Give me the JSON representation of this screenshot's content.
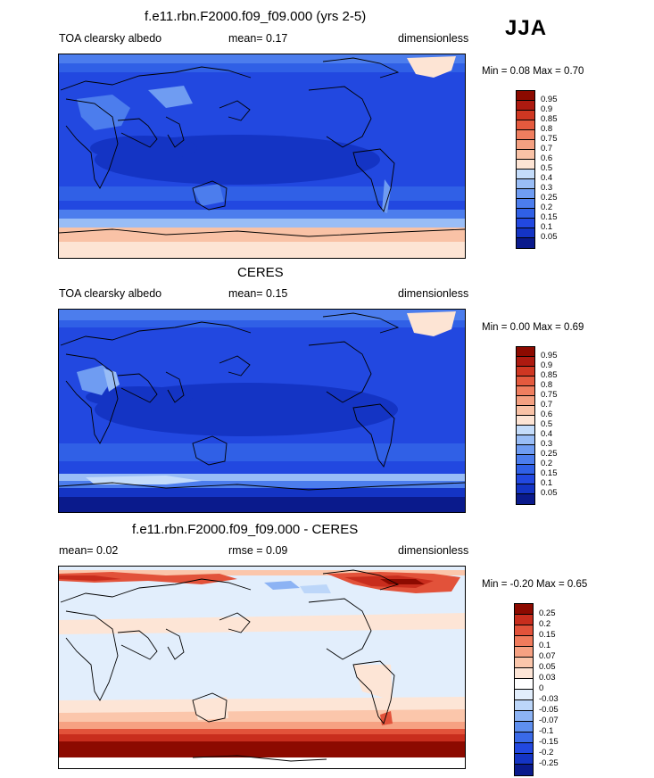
{
  "season": "JJA",
  "colors": {
    "abs_scale": [
      "#0a1a8c",
      "#1434c4",
      "#2248e0",
      "#3060e6",
      "#4c7ded",
      "#6f9cf2",
      "#99bdf6",
      "#c4dcfa",
      "#fde4d4",
      "#f9c2a6",
      "#f4a081",
      "#ef7e5f",
      "#e45a3e",
      "#cf3722",
      "#ad1a10",
      "#8c0a00"
    ],
    "diff_scale": [
      "#0a1a8c",
      "#1434c4",
      "#2248e0",
      "#3a6ae8",
      "#5e8fef",
      "#8cb3f4",
      "#bcd6f9",
      "#e2eefc",
      "#fde5d6",
      "#fbc6ab",
      "#f6a182",
      "#f07b5c",
      "#e2523a",
      "#c82d1d",
      "#8c0a00"
    ]
  },
  "panels": [
    {
      "title": "f.e11.rbn.F2000.f09_f09.000 (yrs 2-5)",
      "left_label": "TOA clearsky albedo",
      "center_label": "mean=  0.17",
      "right_label": "dimensionless",
      "min_max": "Min =  0.08 Max =  0.70",
      "colorbar_labels": [
        "0.95",
        "0.9",
        "0.85",
        "0.8",
        "0.75",
        "0.7",
        "0.6",
        "0.5",
        "0.4",
        "0.3",
        "0.25",
        "0.2",
        "0.15",
        "0.1",
        "0.05"
      ]
    },
    {
      "title": "CERES",
      "left_label": "TOA clearsky albedo",
      "center_label": "mean=  0.15",
      "right_label": "dimensionless",
      "min_max": "Min =  0.00 Max =  0.69",
      "colorbar_labels": [
        "0.95",
        "0.9",
        "0.85",
        "0.8",
        "0.75",
        "0.7",
        "0.6",
        "0.5",
        "0.4",
        "0.3",
        "0.25",
        "0.2",
        "0.15",
        "0.1",
        "0.05"
      ]
    },
    {
      "title": "f.e11.rbn.F2000.f09_f09.000 - CERES",
      "left_label": "mean=  0.02",
      "center_label": "rmse =  0.09",
      "right_label": "dimensionless",
      "min_max": "Min = -0.20 Max =  0.65",
      "colorbar_labels": [
        "0.25",
        "0.2",
        "0.15",
        "0.1",
        "0.07",
        "0.05",
        "0.03",
        "0",
        "-0.03",
        "-0.05",
        "-0.07",
        "-0.1",
        "-0.15",
        "-0.2",
        "-0.25"
      ]
    }
  ]
}
